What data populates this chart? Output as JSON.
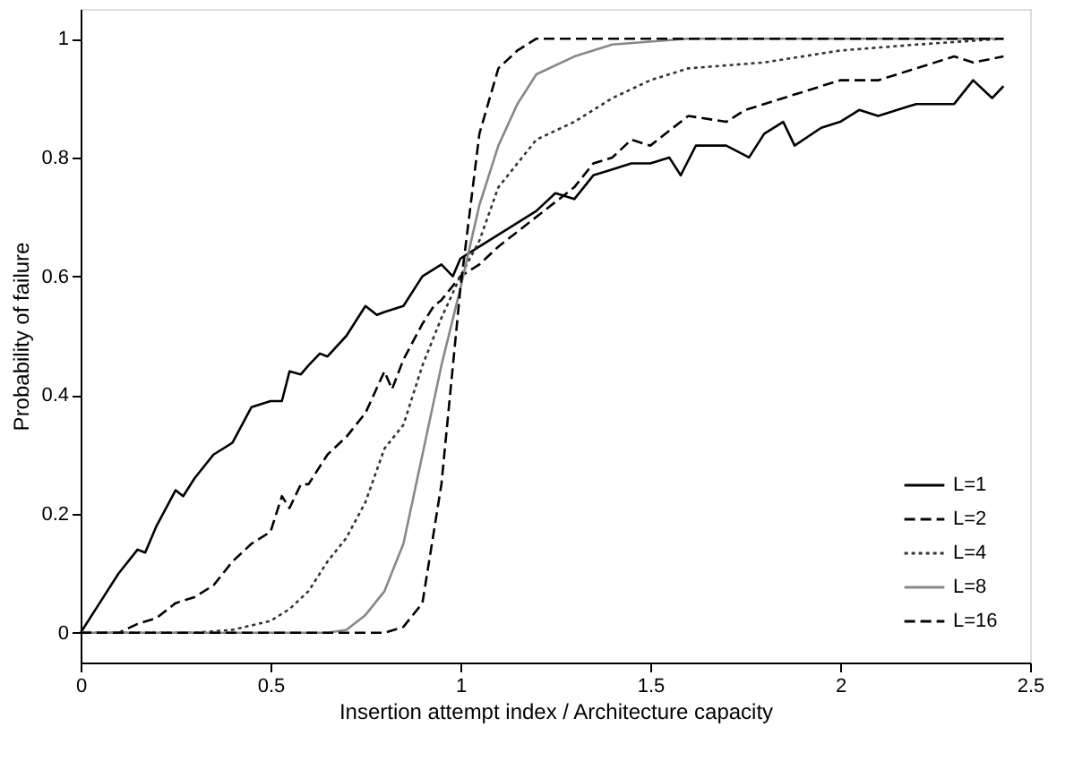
{
  "chart_data": {
    "type": "line",
    "xlabel": "Insertion attempt index / Architecture capacity",
    "ylabel": "Probability of failure",
    "xlim": [
      0,
      2.5
    ],
    "xticks": [
      0,
      0.5,
      1,
      1.5,
      2,
      2.5
    ],
    "ylim": [
      -0.05,
      1.05
    ],
    "yticks": [
      0,
      0.2,
      0.4,
      0.6,
      0.8,
      1
    ],
    "grid": false,
    "legend": "bottom right",
    "marker": "none",
    "series": [
      {
        "name": "L=1",
        "color": "#000000",
        "line_style": "solid",
        "x": [
          0,
          0.05,
          0.1,
          0.15,
          0.17,
          0.2,
          0.25,
          0.27,
          0.3,
          0.35,
          0.4,
          0.45,
          0.5,
          0.53,
          0.55,
          0.58,
          0.6,
          0.63,
          0.65,
          0.7,
          0.75,
          0.78,
          0.8,
          0.85,
          0.9,
          0.95,
          0.98,
          1.0,
          1.05,
          1.1,
          1.15,
          1.2,
          1.25,
          1.3,
          1.35,
          1.4,
          1.45,
          1.5,
          1.55,
          1.58,
          1.62,
          1.7,
          1.76,
          1.8,
          1.85,
          1.88,
          1.95,
          2.0,
          2.05,
          2.1,
          2.2,
          2.3,
          2.35,
          2.4,
          2.43
        ],
        "values": [
          0,
          0.05,
          0.1,
          0.14,
          0.135,
          0.18,
          0.24,
          0.23,
          0.26,
          0.3,
          0.32,
          0.38,
          0.39,
          0.39,
          0.44,
          0.435,
          0.45,
          0.47,
          0.465,
          0.5,
          0.55,
          0.535,
          0.54,
          0.55,
          0.6,
          0.62,
          0.6,
          0.63,
          0.65,
          0.67,
          0.69,
          0.71,
          0.74,
          0.73,
          0.77,
          0.78,
          0.79,
          0.79,
          0.8,
          0.77,
          0.82,
          0.82,
          0.8,
          0.84,
          0.86,
          0.82,
          0.85,
          0.86,
          0.88,
          0.87,
          0.89,
          0.89,
          0.93,
          0.9,
          0.92
        ]
      },
      {
        "name": "L=2",
        "color": "#000000",
        "line_style": "dashed",
        "x": [
          0,
          0.1,
          0.15,
          0.2,
          0.25,
          0.3,
          0.35,
          0.4,
          0.45,
          0.5,
          0.53,
          0.55,
          0.58,
          0.6,
          0.65,
          0.7,
          0.75,
          0.8,
          0.82,
          0.85,
          0.9,
          0.93,
          0.95,
          1.0,
          1.05,
          1.1,
          1.2,
          1.3,
          1.35,
          1.4,
          1.45,
          1.5,
          1.6,
          1.7,
          1.75,
          1.8,
          1.9,
          2.0,
          2.1,
          2.2,
          2.3,
          2.35,
          2.43
        ],
        "values": [
          0,
          0,
          0.015,
          0.025,
          0.05,
          0.06,
          0.08,
          0.12,
          0.15,
          0.17,
          0.23,
          0.21,
          0.25,
          0.25,
          0.3,
          0.33,
          0.37,
          0.44,
          0.41,
          0.46,
          0.52,
          0.55,
          0.56,
          0.6,
          0.62,
          0.65,
          0.7,
          0.75,
          0.79,
          0.8,
          0.83,
          0.82,
          0.87,
          0.86,
          0.88,
          0.89,
          0.91,
          0.93,
          0.93,
          0.95,
          0.97,
          0.96,
          0.97
        ]
      },
      {
        "name": "L=4",
        "color": "#333333",
        "line_style": "dotted",
        "x": [
          0,
          0.3,
          0.4,
          0.5,
          0.55,
          0.6,
          0.65,
          0.7,
          0.75,
          0.8,
          0.85,
          0.9,
          0.95,
          1.0,
          1.05,
          1.1,
          1.15,
          1.2,
          1.3,
          1.4,
          1.5,
          1.6,
          1.8,
          2.0,
          2.2,
          2.43
        ],
        "values": [
          0,
          0,
          0.005,
          0.02,
          0.04,
          0.07,
          0.12,
          0.16,
          0.22,
          0.31,
          0.35,
          0.45,
          0.53,
          0.6,
          0.66,
          0.75,
          0.79,
          0.83,
          0.86,
          0.9,
          0.93,
          0.95,
          0.96,
          0.98,
          0.99,
          1.0
        ]
      },
      {
        "name": "L=8",
        "color": "#888888",
        "line_style": "solid",
        "x": [
          0,
          0.65,
          0.7,
          0.75,
          0.8,
          0.85,
          0.9,
          0.95,
          1.0,
          1.05,
          1.1,
          1.15,
          1.2,
          1.3,
          1.4,
          1.6,
          2.43
        ],
        "values": [
          0,
          0,
          0.005,
          0.03,
          0.07,
          0.15,
          0.3,
          0.45,
          0.58,
          0.72,
          0.82,
          0.89,
          0.94,
          0.97,
          0.99,
          1.0,
          1.0
        ]
      },
      {
        "name": "L=16",
        "color": "#000000",
        "line_style": "dashed",
        "x": [
          0,
          0.8,
          0.85,
          0.9,
          0.95,
          1.0,
          1.05,
          1.1,
          1.15,
          1.2,
          2.43
        ],
        "values": [
          0,
          0,
          0.01,
          0.05,
          0.25,
          0.58,
          0.84,
          0.95,
          0.98,
          1.0,
          1.0
        ]
      }
    ]
  }
}
